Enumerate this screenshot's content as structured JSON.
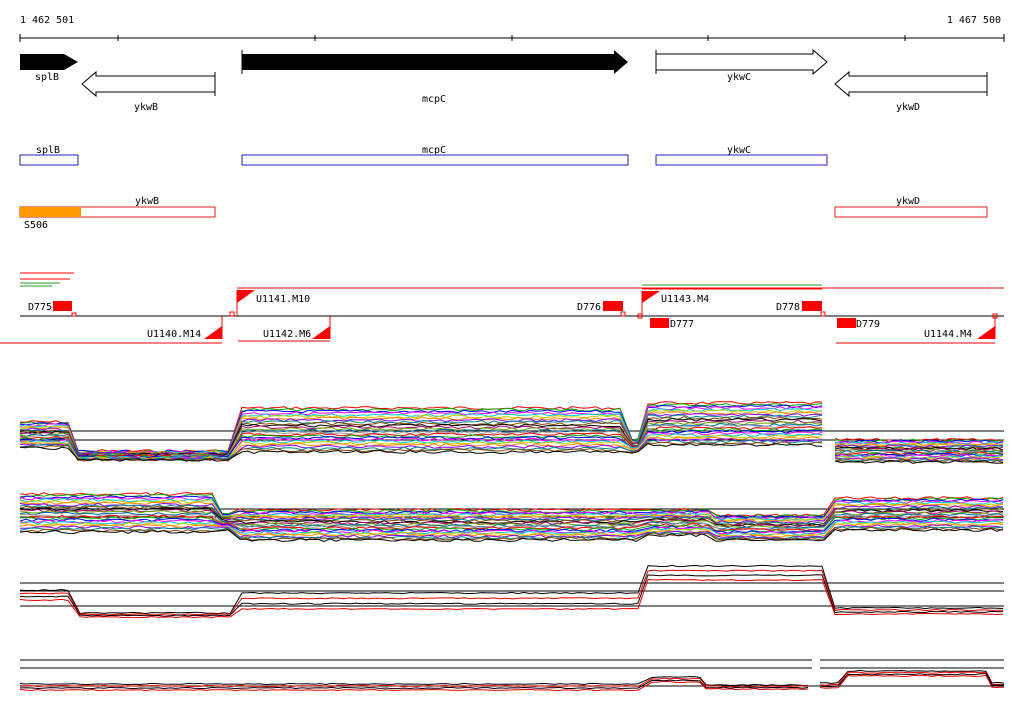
{
  "coordinates": {
    "start": "1 462 501",
    "end": "1 467 500"
  },
  "colors": {
    "gene_fill": "#000000",
    "gene_outline": "#000000",
    "annotation_box": "#2222bb",
    "operon_box": "#dd2222",
    "operon_highlight": "#ff9900",
    "feature_red": "#ff0000",
    "feature_green": "#2a9a2a",
    "profile_black": "#000000",
    "profile_red": "#ee0000"
  },
  "genes": [
    {
      "name": "splB",
      "strand": "+",
      "filled": true
    },
    {
      "name": "ykwB",
      "strand": "-",
      "filled": false
    },
    {
      "name": "mcpC",
      "strand": "+",
      "filled": true
    },
    {
      "name": "ykwC",
      "strand": "+",
      "filled": false
    },
    {
      "name": "ykwD",
      "strand": "-",
      "filled": false
    }
  ],
  "annotation_track": [
    {
      "label": "splB"
    },
    {
      "label": "mcpC"
    },
    {
      "label": "ykwC"
    }
  ],
  "operon_track": [
    {
      "label": "ykwB",
      "highlight_label": "S506"
    },
    {
      "label": "ykwD"
    }
  ],
  "upshift_labels": [
    "U1141.M10",
    "U1143.M4"
  ],
  "downshift_labels": [
    "U1140.M14",
    "U1142.M6",
    "U1144.M4"
  ],
  "d_labels_top": [
    "D775",
    "D776",
    "D778"
  ],
  "d_labels_bottom": [
    "D777",
    "D779"
  ],
  "profile_panels": [
    {
      "name": "all-conditions-panel-1",
      "series": "many"
    },
    {
      "name": "all-conditions-panel-2",
      "series": "many"
    },
    {
      "name": "aggregate-panel-1",
      "series": "black/red"
    },
    {
      "name": "aggregate-panel-2",
      "series": "black/red"
    }
  ]
}
